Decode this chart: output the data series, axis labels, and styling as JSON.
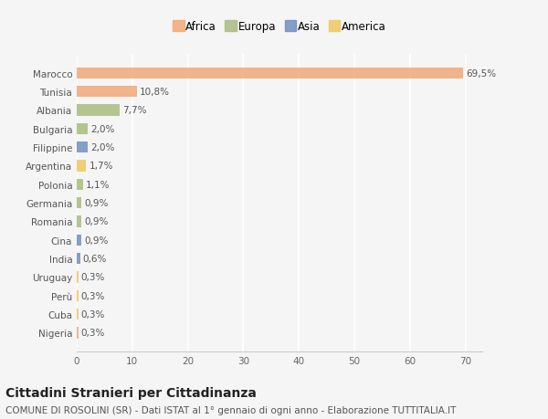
{
  "countries": [
    "Marocco",
    "Tunisia",
    "Albania",
    "Bulgaria",
    "Filippine",
    "Argentina",
    "Polonia",
    "Germania",
    "Romania",
    "Cina",
    "India",
    "Uruguay",
    "Perù",
    "Cuba",
    "Nigeria"
  ],
  "values": [
    69.5,
    10.8,
    7.7,
    2.0,
    2.0,
    1.7,
    1.1,
    0.9,
    0.9,
    0.9,
    0.6,
    0.3,
    0.3,
    0.3,
    0.3
  ],
  "labels": [
    "69,5%",
    "10,8%",
    "7,7%",
    "2,0%",
    "2,0%",
    "1,7%",
    "1,1%",
    "0,9%",
    "0,9%",
    "0,9%",
    "0,6%",
    "0,3%",
    "0,3%",
    "0,3%",
    "0,3%"
  ],
  "colors": [
    "#F0A878",
    "#F0A878",
    "#A8BC80",
    "#A8BC80",
    "#7090C0",
    "#F0C860",
    "#A8BC80",
    "#A8BC80",
    "#A8BC80",
    "#7090C0",
    "#7090C0",
    "#F0C860",
    "#F0C860",
    "#F0C860",
    "#F0A878"
  ],
  "continent": [
    "Africa",
    "Africa",
    "Europa",
    "Europa",
    "Asia",
    "America",
    "Europa",
    "Europa",
    "Europa",
    "Asia",
    "Asia",
    "America",
    "America",
    "America",
    "Africa"
  ],
  "legend_labels": [
    "Africa",
    "Europa",
    "Asia",
    "America"
  ],
  "legend_colors": [
    "#F0A878",
    "#A8BC80",
    "#7090C0",
    "#F0C860"
  ],
  "title": "Cittadini Stranieri per Cittadinanza",
  "subtitle": "COMUNE DI ROSOLINI (SR) - Dati ISTAT al 1° gennaio di ogni anno - Elaborazione TUTTITALIA.IT",
  "xlim": [
    0,
    73
  ],
  "xticks": [
    0,
    10,
    20,
    30,
    40,
    50,
    60,
    70
  ],
  "bg_color": "#F5F5F5",
  "bar_height": 0.6,
  "title_fontsize": 10,
  "subtitle_fontsize": 7.5,
  "label_fontsize": 7.5,
  "tick_fontsize": 7.5,
  "legend_fontsize": 8.5
}
